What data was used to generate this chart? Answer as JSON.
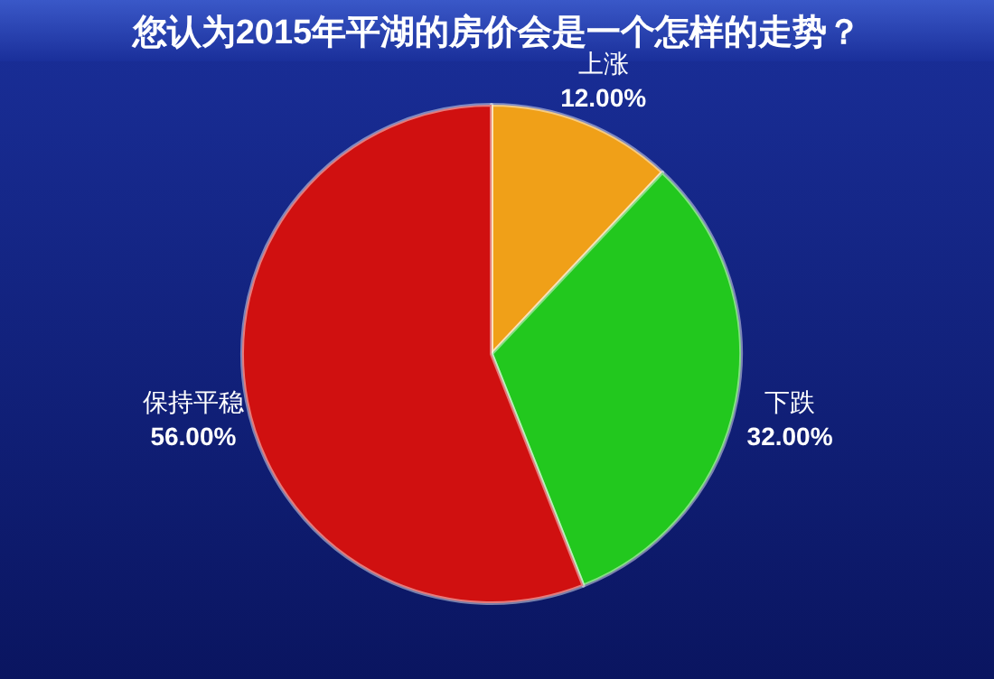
{
  "chart_data": {
    "type": "pie",
    "title": "您认为2015年平湖的房价会是一个怎样的走势？",
    "categories": [
      "上涨",
      "下跌",
      "保持平稳"
    ],
    "values": [
      12,
      32,
      56
    ],
    "value_labels": [
      "12.00%",
      "32.00%",
      "56.00%"
    ],
    "colors": [
      "#f0a018",
      "#22c81e",
      "#d01010"
    ]
  }
}
